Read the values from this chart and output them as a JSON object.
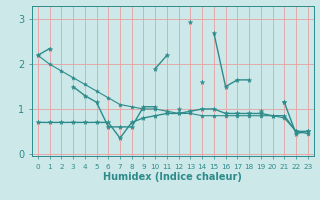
{
  "xlabel": "Humidex (Indice chaleur)",
  "bg_color": "#cce8e8",
  "line_color": "#2e8b8b",
  "grid_color": "#e8a0a0",
  "x": [
    0,
    1,
    2,
    3,
    4,
    5,
    6,
    7,
    8,
    9,
    10,
    11,
    12,
    13,
    14,
    15,
    16,
    17,
    18,
    19,
    20,
    21,
    22,
    23
  ],
  "series1": [
    2.2,
    2.35,
    null,
    null,
    null,
    null,
    null,
    null,
    null,
    null,
    1.9,
    2.2,
    null,
    2.95,
    null,
    2.7,
    1.5,
    1.65,
    1.65,
    null,
    null,
    1.15,
    null,
    null
  ],
  "series2": [
    null,
    null,
    null,
    1.5,
    1.3,
    1.15,
    0.6,
    0.6,
    0.6,
    1.05,
    1.05,
    null,
    1.0,
    null,
    1.6,
    null,
    null,
    null,
    null,
    0.95,
    null,
    1.15,
    0.45,
    0.5
  ],
  "series3": [
    0.7,
    0.7,
    0.7,
    0.7,
    0.7,
    0.7,
    0.7,
    0.35,
    0.7,
    0.8,
    0.85,
    0.9,
    0.9,
    0.95,
    1.0,
    1.0,
    0.9,
    0.9,
    0.9,
    0.9,
    0.85,
    0.85,
    0.5,
    0.5
  ],
  "series4": [
    2.2,
    2.0,
    1.85,
    1.7,
    1.55,
    1.4,
    1.25,
    1.1,
    1.05,
    1.0,
    1.0,
    0.95,
    0.9,
    0.9,
    0.85,
    0.85,
    0.85,
    0.85,
    0.85,
    0.85,
    0.85,
    0.8,
    0.5,
    0.45
  ],
  "ylim": [
    -0.05,
    3.3
  ],
  "xlim": [
    -0.5,
    23.5
  ],
  "yticks": [
    0,
    1,
    2,
    3
  ],
  "xticks": [
    0,
    1,
    2,
    3,
    4,
    5,
    6,
    7,
    8,
    9,
    10,
    11,
    12,
    13,
    14,
    15,
    16,
    17,
    18,
    19,
    20,
    21,
    22,
    23
  ]
}
